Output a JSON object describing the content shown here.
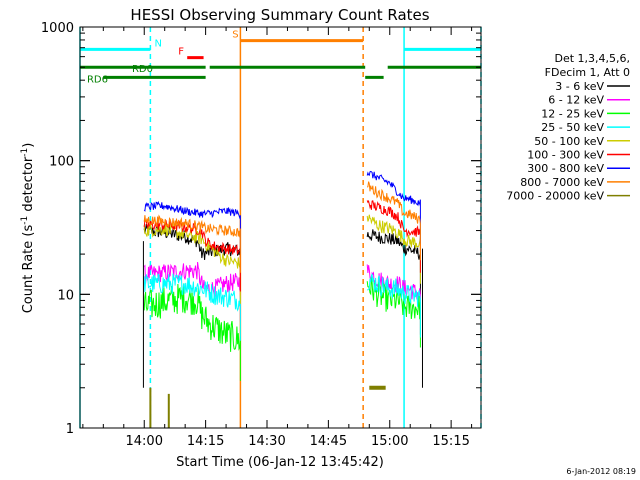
{
  "colors": {
    "background": "#ffffff",
    "axis": "#000000",
    "cyan": "#00ffff",
    "red": "#ff0000",
    "orange": "#ff7f00",
    "green": "#007f00",
    "olive": "#7f7f00"
  },
  "footer_timestamp": "6-Jan-2012 08:19",
  "chart_data": {
    "type": "line",
    "title": "HESSI Observing Summary Count Rates",
    "xlabel": "Start Time (06-Jan-12 13:45:42)",
    "ylabel_prefix": "Count Rate (s",
    "ylabel_exp1": "-1",
    "ylabel_mid": " detector",
    "ylabel_exp2": "-1",
    "ylabel_suffix": ")",
    "y_scale": "log",
    "ylim": [
      1,
      1000
    ],
    "xlim_minutes": [
      -15.7,
      82.3
    ],
    "x_ticks": [
      {
        "m": 0,
        "label": "14:00"
      },
      {
        "m": 15,
        "label": "14:15"
      },
      {
        "m": 30,
        "label": "14:30"
      },
      {
        "m": 45,
        "label": "14:45"
      },
      {
        "m": 60,
        "label": "15:00"
      },
      {
        "m": 75,
        "label": "15:15"
      }
    ],
    "y_ticks": [
      {
        "v": 1,
        "label": "1"
      },
      {
        "v": 10,
        "label": "10"
      },
      {
        "v": 100,
        "label": "100"
      },
      {
        "v": 1000,
        "label": "1000"
      }
    ],
    "legend": {
      "header1": "Det 1,3,4,5,6,",
      "header2": "FDecim 1, Att 0",
      "placement": "right"
    },
    "state_bars": [
      {
        "label": "N",
        "color": "#00ffff",
        "segments": [
          [
            -15.7,
            1.5
          ],
          [
            63.5,
            82.3
          ]
        ],
        "level": 680,
        "label_at": 2.5
      },
      {
        "label": "F",
        "color": "#ff0000",
        "segments": [
          [
            10.5,
            14.5
          ]
        ],
        "level": 590,
        "label_at": 8.3
      },
      {
        "label": "S",
        "color": "#ff7f00",
        "segments": [
          [
            23.5,
            53.5
          ]
        ],
        "level": 790,
        "label_at": 21.5
      },
      {
        "label": "RD0",
        "color": "#007f00",
        "segments": [
          [
            -15.7,
            15.0
          ],
          [
            16.0,
            54.0
          ],
          [
            59.5,
            82.3
          ]
        ],
        "level": 500,
        "label_at": -3.0
      },
      {
        "label": "RD6",
        "color": "#007f00",
        "segments": [
          [
            -10.0,
            15.0
          ],
          [
            54.0,
            58.5
          ]
        ],
        "level": 420,
        "label_at": -14.0
      }
    ],
    "vertical_lines": [
      {
        "m": -15.7,
        "color": "#00ffff",
        "dash": false
      },
      {
        "m": 1.5,
        "color": "#00ffff",
        "dash": true
      },
      {
        "m": 23.5,
        "color": "#ff7f00",
        "dash": false
      },
      {
        "m": 53.5,
        "color": "#ff7f00",
        "dash": true
      },
      {
        "m": 63.5,
        "color": "#00ffff",
        "dash": false
      },
      {
        "m": 82.3,
        "color": "#00ffff",
        "dash": true
      }
    ],
    "series": [
      {
        "name": "3 - 6 keV",
        "color": "#000000",
        "segments": [
          {
            "t": [
              0,
              5,
              10,
              13,
              14,
              17,
              20,
              23.5
            ],
            "v": [
              30,
              29,
              27,
              25,
              20,
              21,
              22,
              21
            ],
            "noise": 0.05
          },
          {
            "t": [
              54.5,
              57,
              60,
              62,
              63.5,
              64.5,
              66,
              67.5
            ],
            "v": [
              28,
              27,
              26,
              25,
              22,
              22,
              21,
              20
            ],
            "noise": 0.05
          }
        ]
      },
      {
        "name": "6 - 12 keV",
        "color": "#ff00ff",
        "segments": [
          {
            "t": [
              0,
              5,
              10,
              13,
              14.5,
              17,
              20,
              23.5
            ],
            "v": [
              14,
              14.5,
              15,
              15,
              11,
              11,
              12,
              12.5
            ],
            "noise": 0.07
          },
          {
            "t": [
              54.5,
              57,
              60,
              62,
              63.5,
              64.5,
              67.5
            ],
            "v": [
              15,
              13,
              12,
              12,
              11,
              11,
              10
            ],
            "noise": 0.07
          }
        ]
      },
      {
        "name": "12 - 25 keV",
        "color": "#00ff00",
        "segments": [
          {
            "t": [
              0,
              3,
              6,
              10,
              13,
              14,
              16,
              20,
              23.5
            ],
            "v": [
              8,
              8.5,
              9,
              9.5,
              9,
              7,
              6,
              5,
              4.5
            ],
            "noise": 0.12
          },
          {
            "t": [
              54.5,
              57,
              60,
              62,
              63.5,
              65,
              67.5
            ],
            "v": [
              12,
              10,
              9,
              9,
              8,
              8,
              8
            ],
            "noise": 0.1
          }
        ]
      },
      {
        "name": "25 - 50 keV",
        "color": "#00ffff",
        "segments": [
          {
            "t": [
              0,
              5,
              10,
              14.5,
              17,
              20,
              23.5
            ],
            "v": [
              12,
              12,
              12,
              11,
              10,
              9.5,
              9
            ],
            "noise": 0.08
          },
          {
            "t": [
              54.5,
              57,
              60,
              62,
              63.5,
              64.5,
              67.5
            ],
            "v": [
              13,
              12,
              11,
              11,
              10,
              10,
              9.5
            ],
            "noise": 0.08
          }
        ]
      },
      {
        "name": "50 - 100 keV",
        "color": "#cccc00",
        "segments": [
          {
            "t": [
              0,
              5,
              10,
              14,
              15,
              18,
              20,
              23.5
            ],
            "v": [
              30,
              31,
              28,
              26,
              24,
              20,
              18,
              17
            ],
            "noise": 0.05
          },
          {
            "t": [
              54.5,
              57,
              60,
              62,
              63.5,
              64.5,
              67.5
            ],
            "v": [
              38,
              33,
              31,
              29,
              26,
              25,
              24
            ],
            "noise": 0.05
          }
        ]
      },
      {
        "name": "100 - 300 keV",
        "color": "#ff0000",
        "segments": [
          {
            "t": [
              0,
              5,
              10,
              14,
              15,
              17,
              20,
              23.5
            ],
            "v": [
              33,
              33,
              32,
              30,
              25,
              23,
              22,
              21
            ],
            "noise": 0.04
          },
          {
            "t": [
              54.5,
              57,
              60,
              62,
              63.5,
              64.5,
              67.5
            ],
            "v": [
              48,
              45,
              42,
              38,
              30,
              30,
              29
            ],
            "noise": 0.04
          }
        ]
      },
      {
        "name": "300 - 800 keV",
        "color": "#0000ff",
        "segments": [
          {
            "t": [
              0,
              5,
              10,
              14,
              15,
              20,
              23.5
            ],
            "v": [
              45,
              46,
              42,
              40,
              40,
              42,
              40
            ],
            "noise": 0.03
          },
          {
            "t": [
              54.5,
              57,
              60,
              62,
              63.5,
              64.5,
              67.5
            ],
            "v": [
              82,
              75,
              68,
              58,
              52,
              52,
              48
            ],
            "noise": 0.03
          }
        ]
      },
      {
        "name": "800 - 7000 keV",
        "color": "#ff7f00",
        "segments": [
          {
            "t": [
              0,
              5,
              10,
              14,
              15,
              20,
              23.5
            ],
            "v": [
              36,
              35,
              34,
              32,
              31,
              30,
              29
            ],
            "noise": 0.04
          },
          {
            "t": [
              54.5,
              57,
              60,
              62,
              63.5,
              64.5,
              67.5
            ],
            "v": [
              65,
              58,
              52,
              48,
              40,
              40,
              36
            ],
            "noise": 0.04
          }
        ]
      },
      {
        "name": "7000 - 20000 keV",
        "color": "#7f7f00",
        "segments": [
          {
            "t": [
              55,
              59
            ],
            "v": [
              2,
              2
            ],
            "noise": 0
          },
          {
            "t": [
              1.5,
              1.5
            ],
            "v": [
              1,
              2
            ],
            "noise": 0
          },
          {
            "t": [
              6,
              6
            ],
            "v": [
              1,
              1.8
            ],
            "noise": 0
          }
        ]
      }
    ],
    "pre_data_spikes": [
      {
        "name": "3 - 6 keV",
        "color": "#000000",
        "m": -0.2,
        "v_low": 2,
        "v_high": 25
      }
    ],
    "post_data_spikes": [
      {
        "color": "#000000",
        "m": 68,
        "v_low": 2,
        "v_high": 22
      }
    ]
  }
}
